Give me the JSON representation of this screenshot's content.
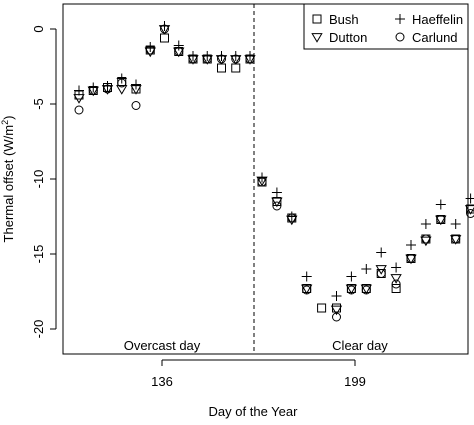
{
  "chart_data": {
    "type": "scatter",
    "title": "",
    "xlabel": "Day of the Year",
    "ylabel": "Thermal offset (W/m²)",
    "ylabel_parts": {
      "text": "Thermal offset (W/m",
      "sup": "2",
      "close": ")"
    },
    "ylim": [
      -21.5,
      2
    ],
    "yticks": [
      0,
      -5,
      -10,
      -15,
      -20
    ],
    "xticks": [
      "136",
      "199"
    ],
    "grid": false,
    "legend_position": "top-right",
    "annotations": [
      "Overcast day",
      "Clear day"
    ],
    "series": [
      {
        "name": "Bush",
        "marker": "square",
        "points": [
          {
            "i": 0,
            "y": -4.4
          },
          {
            "i": 1,
            "y": -4.1
          },
          {
            "i": 2,
            "y": -3.9
          },
          {
            "i": 3,
            "y": -3.5
          },
          {
            "i": 4,
            "y": -4.0
          },
          {
            "i": 5,
            "y": -1.4
          },
          {
            "i": 6,
            "y": -0.6
          },
          {
            "i": 7,
            "y": -1.5
          },
          {
            "i": 8,
            "y": -2.0
          },
          {
            "i": 9,
            "y": -2.0
          },
          {
            "i": 10,
            "y": -2.6
          },
          {
            "i": 11,
            "y": -2.6
          },
          {
            "i": 12,
            "y": -2.0
          },
          {
            "i": 13,
            "y": -10.2
          },
          {
            "i": 14,
            "y": -11.5
          },
          {
            "i": 15,
            "y": -12.6
          },
          {
            "i": 16,
            "y": -17.3
          },
          {
            "i": 17,
            "y": -18.6
          },
          {
            "i": 18,
            "y": -18.6
          },
          {
            "i": 19,
            "y": -17.3
          },
          {
            "i": 20,
            "y": -17.3
          },
          {
            "i": 21,
            "y": -16.3
          },
          {
            "i": 22,
            "y": -17.3
          },
          {
            "i": 23,
            "y": -15.3
          },
          {
            "i": 24,
            "y": -14.0
          },
          {
            "i": 25,
            "y": -12.7
          },
          {
            "i": 26,
            "y": -14.0
          },
          {
            "i": 27,
            "y": -12.0
          }
        ]
      },
      {
        "name": "Dutton",
        "marker": "triangle-down",
        "points": [
          {
            "i": 0,
            "y": -4.6
          },
          {
            "i": 1,
            "y": -4.1
          },
          {
            "i": 2,
            "y": -4.0
          },
          {
            "i": 3,
            "y": -4.0
          },
          {
            "i": 4,
            "y": -4.0
          },
          {
            "i": 5,
            "y": -1.5
          },
          {
            "i": 6,
            "y": 0.0
          },
          {
            "i": 7,
            "y": -1.5
          },
          {
            "i": 8,
            "y": -2.0
          },
          {
            "i": 9,
            "y": -2.0
          },
          {
            "i": 10,
            "y": -2.0
          },
          {
            "i": 11,
            "y": -2.0
          },
          {
            "i": 12,
            "y": -2.0
          },
          {
            "i": 13,
            "y": -10.1
          },
          {
            "i": 14,
            "y": -11.5
          },
          {
            "i": 15,
            "y": -12.7
          },
          {
            "i": 16,
            "y": -17.3
          },
          {
            "i": 18,
            "y": -18.7
          },
          {
            "i": 19,
            "y": -17.3
          },
          {
            "i": 20,
            "y": -17.3
          },
          {
            "i": 21,
            "y": -16.0
          },
          {
            "i": 22,
            "y": -16.6
          },
          {
            "i": 23,
            "y": -15.3
          },
          {
            "i": 24,
            "y": -14.1
          },
          {
            "i": 25,
            "y": -12.7
          },
          {
            "i": 26,
            "y": -14.0
          },
          {
            "i": 27,
            "y": -12.0
          }
        ]
      },
      {
        "name": "Haeffelin",
        "marker": "plus",
        "points": [
          {
            "i": 0,
            "y": -4.1
          },
          {
            "i": 1,
            "y": -3.9
          },
          {
            "i": 2,
            "y": -3.8
          },
          {
            "i": 3,
            "y": -3.3
          },
          {
            "i": 4,
            "y": -3.7
          },
          {
            "i": 5,
            "y": -1.2
          },
          {
            "i": 6,
            "y": 0.2
          },
          {
            "i": 7,
            "y": -1.1
          },
          {
            "i": 8,
            "y": -1.8
          },
          {
            "i": 9,
            "y": -1.8
          },
          {
            "i": 10,
            "y": -1.8
          },
          {
            "i": 11,
            "y": -1.8
          },
          {
            "i": 12,
            "y": -1.8
          },
          {
            "i": 13,
            "y": -9.9
          },
          {
            "i": 14,
            "y": -10.9
          },
          {
            "i": 15,
            "y": -12.5
          },
          {
            "i": 16,
            "y": -16.5
          },
          {
            "i": 18,
            "y": -17.8
          },
          {
            "i": 19,
            "y": -16.5
          },
          {
            "i": 20,
            "y": -16.0
          },
          {
            "i": 21,
            "y": -14.9
          },
          {
            "i": 22,
            "y": -15.9
          },
          {
            "i": 23,
            "y": -14.4
          },
          {
            "i": 24,
            "y": -13.0
          },
          {
            "i": 25,
            "y": -11.7
          },
          {
            "i": 26,
            "y": -13.0
          },
          {
            "i": 27,
            "y": -11.3
          }
        ]
      },
      {
        "name": "Carlund",
        "marker": "circle",
        "points": [
          {
            "i": 0,
            "y": -5.4
          },
          {
            "i": 1,
            "y": -4.1
          },
          {
            "i": 2,
            "y": -4.0
          },
          {
            "i": 3,
            "y": -3.6
          },
          {
            "i": 4,
            "y": -5.1
          },
          {
            "i": 5,
            "y": -1.4
          },
          {
            "i": 6,
            "y": 0.0
          },
          {
            "i": 7,
            "y": -1.5
          },
          {
            "i": 8,
            "y": -2.0
          },
          {
            "i": 9,
            "y": -2.0
          },
          {
            "i": 10,
            "y": -2.0
          },
          {
            "i": 11,
            "y": -2.0
          },
          {
            "i": 12,
            "y": -2.0
          },
          {
            "i": 13,
            "y": -10.2
          },
          {
            "i": 14,
            "y": -11.8
          },
          {
            "i": 15,
            "y": -12.6
          },
          {
            "i": 16,
            "y": -17.4
          },
          {
            "i": 18,
            "y": -19.2
          },
          {
            "i": 19,
            "y": -17.4
          },
          {
            "i": 20,
            "y": -17.4
          },
          {
            "i": 21,
            "y": -16.3
          },
          {
            "i": 22,
            "y": -17.0
          },
          {
            "i": 23,
            "y": -15.3
          },
          {
            "i": 24,
            "y": -14.0
          },
          {
            "i": 25,
            "y": -12.7
          },
          {
            "i": 26,
            "y": -14.0
          },
          {
            "i": 27,
            "y": -12.3
          }
        ]
      }
    ]
  }
}
